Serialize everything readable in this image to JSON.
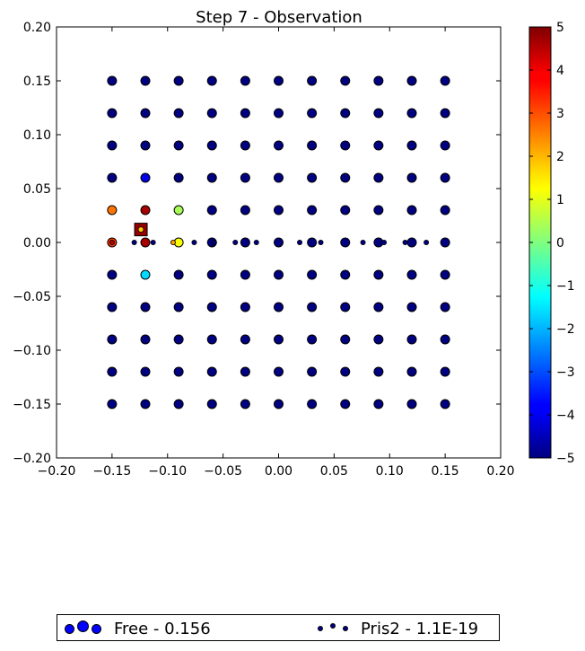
{
  "chart_data": {
    "type": "scatter",
    "title": "Step 7 - Observation",
    "xlabel": "",
    "ylabel": "",
    "xlim": [
      -0.2,
      0.2
    ],
    "ylim": [
      -0.2,
      0.2
    ],
    "xticks": [
      "−0.20",
      "−0.15",
      "−0.10",
      "−0.05",
      "0.00",
      "0.05",
      "0.10",
      "0.15",
      "0.20"
    ],
    "yticks": [
      "−0.20",
      "−0.15",
      "−0.10",
      "−0.05",
      "0.00",
      "0.05",
      "0.10",
      "0.15",
      "0.20"
    ],
    "grid": false,
    "colorbar": {
      "range": [
        -5,
        5
      ],
      "colormap": "jet",
      "ticks": [
        "−5",
        "−4",
        "−3",
        "−2",
        "−1",
        "0",
        "1",
        "2",
        "3",
        "4",
        "5"
      ]
    },
    "grid_points": {
      "x": [
        -0.15,
        -0.12,
        -0.09,
        -0.06,
        -0.03,
        0.0,
        0.03,
        0.06,
        0.09,
        0.12,
        0.15
      ],
      "y": [
        0.15,
        0.12,
        0.09,
        0.06,
        0.03,
        0.0,
        -0.03,
        -0.06,
        -0.09,
        -0.12,
        -0.15
      ],
      "default_value": -5,
      "overrides": [
        {
          "x": -0.12,
          "y": 0.06,
          "value": -4
        },
        {
          "x": -0.15,
          "y": 0.03,
          "value": 2.6
        },
        {
          "x": -0.12,
          "y": 0.03,
          "value": 4.6
        },
        {
          "x": -0.09,
          "y": 0.03,
          "value": 0.4
        },
        {
          "x": -0.15,
          "y": 0.0,
          "value": 3.2
        },
        {
          "x": -0.12,
          "y": 0.0,
          "value": 4.6
        },
        {
          "x": -0.09,
          "y": 0.0,
          "value": 1.2
        },
        {
          "x": -0.12,
          "y": -0.03,
          "value": -1.6
        }
      ]
    },
    "small_points": [
      {
        "x": -0.15,
        "y": 0.0,
        "value": 4.5
      },
      {
        "x": -0.13,
        "y": 0.0,
        "value": -5
      },
      {
        "x": -0.113,
        "y": 0.0,
        "value": -5
      },
      {
        "x": -0.095,
        "y": 0.0,
        "value": 2.2
      },
      {
        "x": -0.076,
        "y": 0.0,
        "value": -5
      },
      {
        "x": -0.058,
        "y": 0.0,
        "value": -5
      },
      {
        "x": -0.039,
        "y": 0.0,
        "value": -5
      },
      {
        "x": -0.02,
        "y": 0.0,
        "value": -5
      },
      {
        "x": 0.019,
        "y": 0.0,
        "value": -5
      },
      {
        "x": 0.038,
        "y": 0.0,
        "value": -5
      },
      {
        "x": 0.076,
        "y": 0.0,
        "value": -5
      },
      {
        "x": 0.095,
        "y": 0.0,
        "value": -5
      },
      {
        "x": 0.114,
        "y": 0.0,
        "value": -5
      },
      {
        "x": 0.133,
        "y": 0.0,
        "value": -5
      }
    ],
    "marker": {
      "x": -0.124,
      "y": 0.012,
      "value": 1.8
    },
    "legend": {
      "placement": "below",
      "entries": [
        {
          "label": "Free - 0.156"
        },
        {
          "label": "Pris2 - 1.1E-19"
        }
      ]
    }
  }
}
